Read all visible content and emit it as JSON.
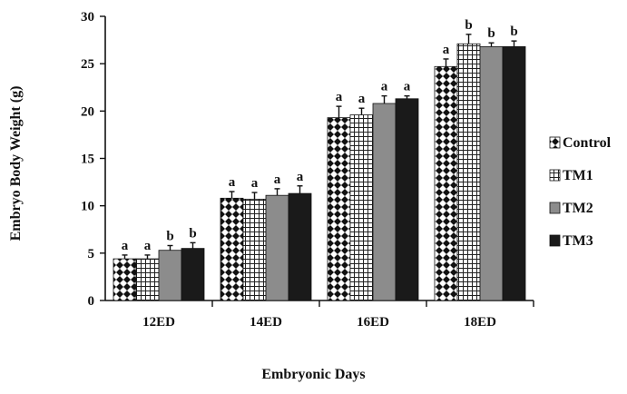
{
  "chart_data": {
    "type": "bar",
    "xlabel": "Embryonic Days",
    "ylabel": "Embryo Body Weight (g)",
    "categories": [
      "12ED",
      "14ED",
      "16ED",
      "18ED"
    ],
    "ylim": [
      0,
      30
    ],
    "yticks": [
      0,
      5,
      10,
      15,
      20,
      25,
      30
    ],
    "grid": false,
    "legend_position": "right",
    "series": [
      {
        "name": "Control",
        "pattern": "diamond-checker",
        "values": [
          4.4,
          10.8,
          19.3,
          24.7
        ],
        "errors": [
          0.4,
          0.7,
          1.2,
          0.8
        ],
        "letters": [
          "a",
          "a",
          "a",
          "a"
        ]
      },
      {
        "name": "TM1",
        "pattern": "grid",
        "values": [
          4.4,
          10.7,
          19.6,
          27.1
        ],
        "errors": [
          0.4,
          0.7,
          0.7,
          1.0
        ],
        "letters": [
          "a",
          "a",
          "a",
          "b"
        ]
      },
      {
        "name": "TM2",
        "pattern": "solid-gray",
        "color": "#8c8c8c",
        "values": [
          5.3,
          11.1,
          20.8,
          26.8
        ],
        "errors": [
          0.5,
          0.7,
          0.8,
          0.4
        ],
        "letters": [
          "b",
          "a",
          "a",
          "b"
        ]
      },
      {
        "name": "TM3",
        "pattern": "solid-black",
        "color": "#1a1a1a",
        "values": [
          5.5,
          11.3,
          21.3,
          26.8
        ],
        "errors": [
          0.6,
          0.8,
          0.3,
          0.6
        ],
        "letters": [
          "b",
          "a",
          "a",
          "b"
        ]
      }
    ]
  }
}
